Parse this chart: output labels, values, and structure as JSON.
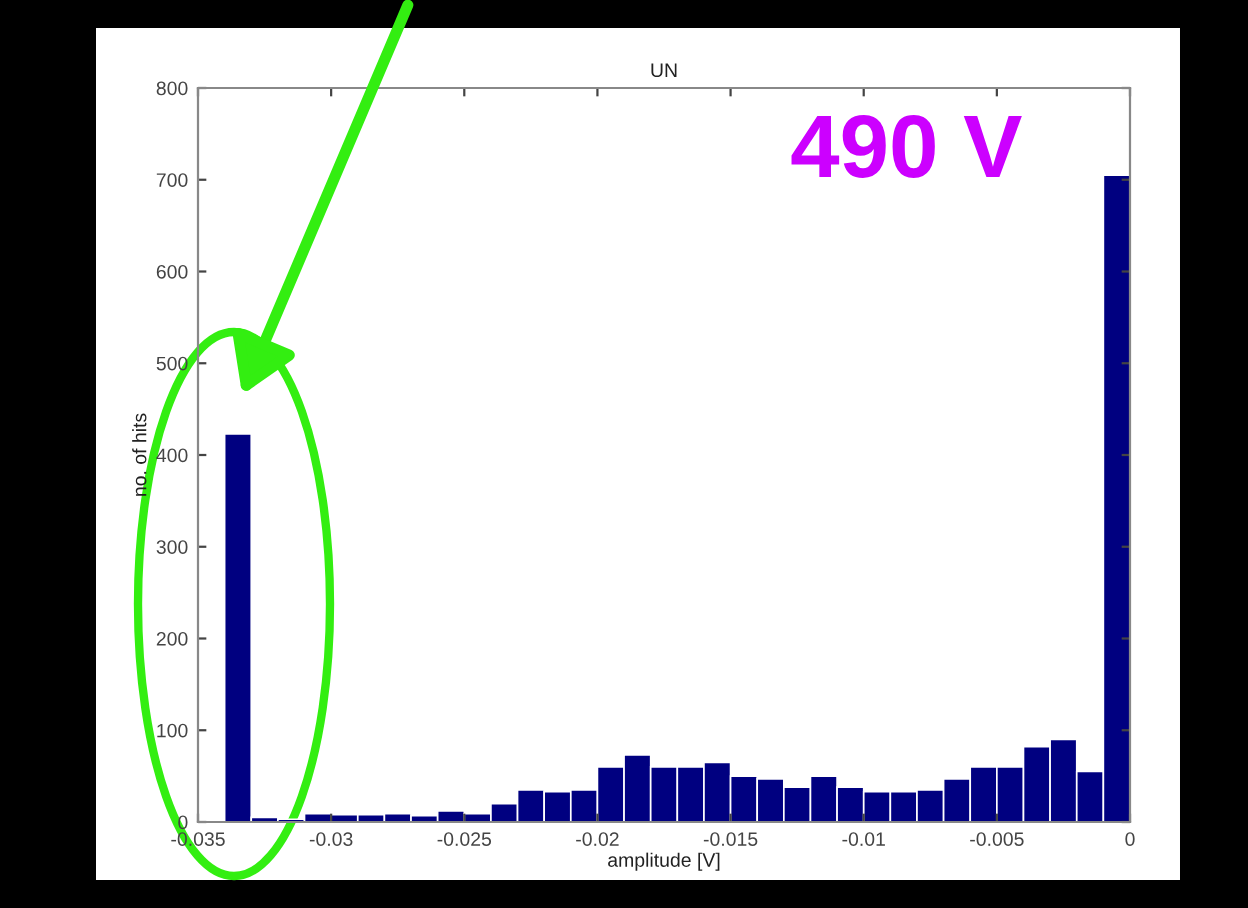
{
  "chart_data": {
    "type": "histogram",
    "title": "UN",
    "xlabel": "amplitude [V]",
    "ylabel": "no. of hits",
    "bins": [
      -0.034,
      -0.033,
      -0.032,
      -0.031,
      -0.03,
      -0.029,
      -0.028,
      -0.027,
      -0.026,
      -0.025,
      -0.024,
      -0.023,
      -0.022,
      -0.021,
      -0.02,
      -0.019,
      -0.018,
      -0.017,
      -0.016,
      -0.015,
      -0.014,
      -0.013,
      -0.012,
      -0.011,
      -0.01,
      -0.009,
      -0.008,
      -0.007,
      -0.006,
      -0.005,
      -0.004,
      -0.003,
      -0.002,
      -0.001,
      0
    ],
    "values": [
      423,
      5,
      3,
      9,
      8,
      8,
      9,
      7,
      12,
      9,
      20,
      35,
      33,
      35,
      60,
      73,
      60,
      60,
      65,
      50,
      47,
      38,
      50,
      38,
      33,
      33,
      35,
      47,
      60,
      60,
      82,
      90,
      55,
      705
    ],
    "color": "#000080",
    "xlim": [
      -0.035,
      0
    ],
    "xticks": [
      -0.035,
      -0.03,
      -0.025,
      -0.02,
      -0.015,
      -0.01,
      -0.005,
      0
    ],
    "ylim": [
      0,
      800
    ],
    "yticks": [
      0,
      100,
      200,
      300,
      400,
      500,
      600,
      700,
      800
    ],
    "grid": false,
    "annotations": [
      "490 V"
    ]
  }
}
